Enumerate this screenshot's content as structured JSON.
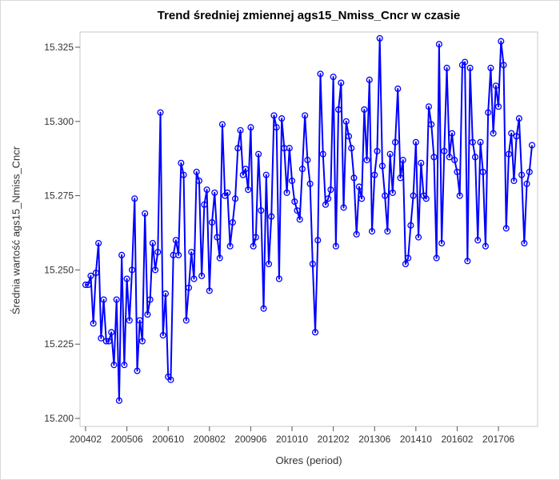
{
  "chart_data": {
    "type": "line",
    "title": "Trend średniej zmiennej ags15_Nmiss_Cncr w czasie",
    "xlabel": "Okres (period)",
    "ylabel": "Średnia wartość ags15_Nmiss_Cncr",
    "xtick_labels": [
      "200402",
      "200506",
      "200610",
      "200802",
      "200906",
      "201010",
      "201202",
      "201306",
      "201410",
      "201602",
      "201706"
    ],
    "ylim": [
      15.2,
      15.33
    ],
    "yticks": [
      15.2,
      15.225,
      15.25,
      15.275,
      15.3,
      15.325
    ],
    "ytick_labels": [
      "15.200",
      "15.225",
      "15.250",
      "15.275",
      "15.300",
      "15.325"
    ],
    "line_color": "#0000ff",
    "start_period": "200402",
    "series": [
      {
        "values": [
          15.245,
          15.245,
          15.248,
          15.232,
          15.249,
          15.259,
          15.227,
          15.24,
          15.226,
          15.226,
          15.229,
          15.218,
          15.24,
          15.206,
          15.255,
          15.218,
          15.247,
          15.233,
          15.25,
          15.274,
          15.216,
          15.233,
          15.226,
          15.269,
          15.235,
          15.24,
          15.259,
          15.25,
          15.256,
          15.303,
          15.228,
          15.242,
          15.214,
          15.213,
          15.255,
          15.26,
          15.255,
          15.286,
          15.282,
          15.233,
          15.244,
          15.256,
          15.247,
          15.283,
          15.28,
          15.248,
          15.272,
          15.277,
          15.243,
          15.266,
          15.276,
          15.261,
          15.254,
          15.299,
          15.275,
          15.276,
          15.258,
          15.266,
          15.274,
          15.291,
          15.297,
          15.282,
          15.284,
          15.277,
          15.298,
          15.258,
          15.261,
          15.289,
          15.27,
          15.237,
          15.282,
          15.252,
          15.268,
          15.302,
          15.298,
          15.247,
          15.301,
          15.291,
          15.276,
          15.291,
          15.28,
          15.273,
          15.27,
          15.267,
          15.284,
          15.302,
          15.287,
          15.279,
          15.252,
          15.229,
          15.26,
          15.316,
          15.289,
          15.272,
          15.274,
          15.277,
          15.315,
          15.258,
          15.304,
          15.313,
          15.271,
          15.3,
          15.295,
          15.291,
          15.281,
          15.262,
          15.278,
          15.274,
          15.304,
          15.287,
          15.314,
          15.263,
          15.282,
          15.29,
          15.328,
          15.285,
          15.275,
          15.263,
          15.289,
          15.276,
          15.293,
          15.311,
          15.281,
          15.287,
          15.252,
          15.254,
          15.265,
          15.275,
          15.293,
          15.261,
          15.286,
          15.275,
          15.274,
          15.305,
          15.299,
          15.288,
          15.254,
          15.326,
          15.259,
          15.29,
          15.318,
          15.288,
          15.296,
          15.287,
          15.283,
          15.275,
          15.319,
          15.32,
          15.253,
          15.318,
          15.293,
          15.288,
          15.26,
          15.293,
          15.283,
          15.258,
          15.303,
          15.318,
          15.296,
          15.312,
          15.305,
          15.327,
          15.319,
          15.264,
          15.289,
          15.296,
          15.28,
          15.295,
          15.301,
          15.282,
          15.259,
          15.279,
          15.283,
          15.292
        ]
      }
    ]
  }
}
